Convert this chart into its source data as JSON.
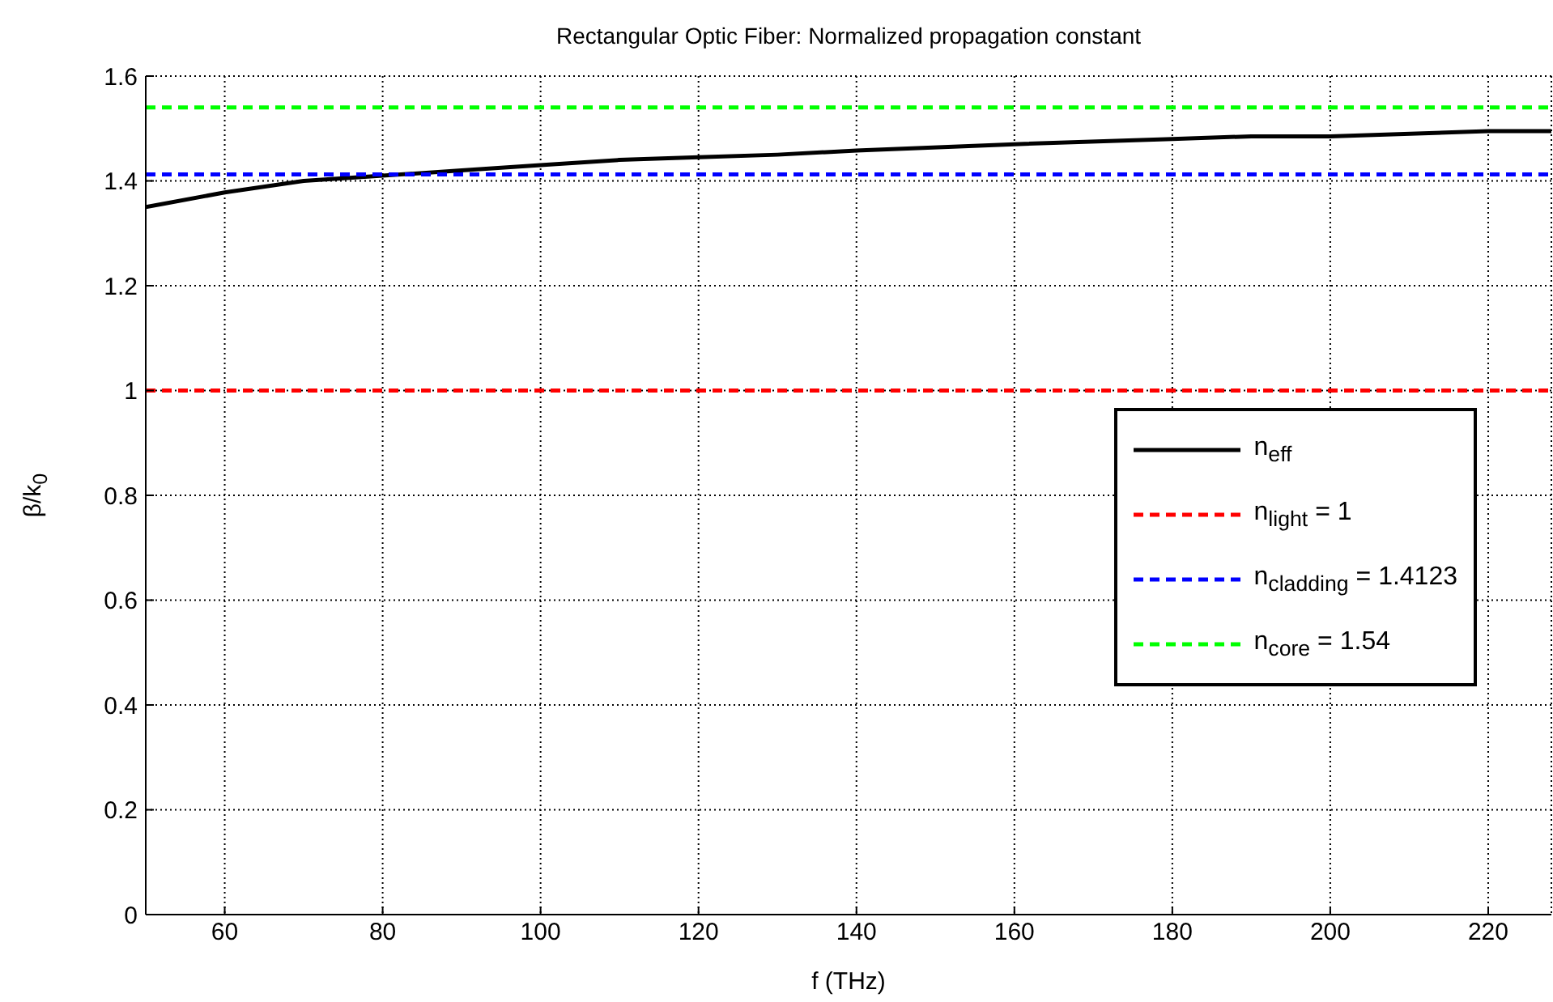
{
  "chart_data": {
    "type": "line",
    "title": "Rectangular Optic Fiber: Normalized propagation constant",
    "xlabel": "f (THz)",
    "ylabel": "β/k$_{0}$",
    "x": [
      50,
      60,
      70,
      80,
      90,
      100,
      110,
      120,
      130,
      140,
      160,
      180,
      190,
      200,
      220,
      228
    ],
    "series": [
      {
        "name": "n$_{eff}$",
        "color": "#000000",
        "line_style": "solid",
        "values": [
          1.35,
          1.378,
          1.4,
          1.41,
          1.42,
          1.43,
          1.44,
          1.445,
          1.45,
          1.458,
          1.47,
          1.48,
          1.485,
          1.485,
          1.495,
          1.495
        ]
      },
      {
        "name": "n$_{light}$ = 1",
        "color": "#ff0000",
        "line_style": "dashed",
        "values": [
          1,
          1,
          1,
          1,
          1,
          1,
          1,
          1,
          1,
          1,
          1,
          1,
          1,
          1,
          1,
          1
        ]
      },
      {
        "name": "n$_{cladding}$ = 1.4123",
        "color": "#0000ff",
        "line_style": "dashed",
        "values": [
          1.4123,
          1.4123,
          1.4123,
          1.4123,
          1.4123,
          1.4123,
          1.4123,
          1.4123,
          1.4123,
          1.4123,
          1.4123,
          1.4123,
          1.4123,
          1.4123,
          1.4123,
          1.4123
        ]
      },
      {
        "name": "n$_{core}$ = 1.54",
        "color": "#00ff00",
        "line_style": "dashed",
        "values": [
          1.54,
          1.54,
          1.54,
          1.54,
          1.54,
          1.54,
          1.54,
          1.54,
          1.54,
          1.54,
          1.54,
          1.54,
          1.54,
          1.54,
          1.54,
          1.54
        ]
      }
    ],
    "xlim": [
      50,
      228
    ],
    "xticks": [
      60,
      80,
      100,
      120,
      140,
      160,
      180,
      200,
      220
    ],
    "ylim": [
      0,
      1.6
    ],
    "yticks": [
      0,
      0.2,
      0.4,
      0.6,
      0.8,
      1,
      1.2,
      1.4,
      1.6
    ],
    "grid": true,
    "legend": "right",
    "marker": "none"
  }
}
